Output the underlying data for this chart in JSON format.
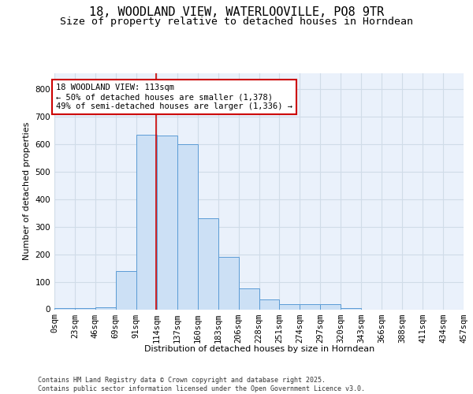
{
  "title_line1": "18, WOODLAND VIEW, WATERLOOVILLE, PO8 9TR",
  "title_line2": "Size of property relative to detached houses in Horndean",
  "xlabel": "Distribution of detached houses by size in Horndean",
  "ylabel": "Number of detached properties",
  "bin_labels": [
    "0sqm",
    "23sqm",
    "46sqm",
    "69sqm",
    "91sqm",
    "114sqm",
    "137sqm",
    "160sqm",
    "183sqm",
    "206sqm",
    "228sqm",
    "251sqm",
    "274sqm",
    "297sqm",
    "320sqm",
    "343sqm",
    "366sqm",
    "388sqm",
    "411sqm",
    "434sqm",
    "457sqm"
  ],
  "bin_starts": [
    0,
    23,
    46,
    69,
    92,
    115,
    138,
    161,
    184,
    207,
    230,
    253,
    276,
    299,
    322,
    345,
    368,
    391,
    414,
    437
  ],
  "bin_width": 23,
  "bar_heights": [
    5,
    5,
    8,
    140,
    635,
    632,
    600,
    330,
    190,
    75,
    35,
    20,
    20,
    20,
    5,
    0,
    0,
    0,
    0,
    0
  ],
  "bar_color": "#cce0f5",
  "bar_edge_color": "#5b9bd5",
  "property_line_x": 114,
  "property_line_color": "#cc0000",
  "annotation_text": "18 WOODLAND VIEW: 113sqm\n← 50% of detached houses are smaller (1,378)\n49% of semi-detached houses are larger (1,336) →",
  "annotation_box_color": "#cc0000",
  "ylim": [
    0,
    860
  ],
  "yticks": [
    0,
    100,
    200,
    300,
    400,
    500,
    600,
    700,
    800
  ],
  "xlim_min": 0,
  "xlim_max": 460,
  "background_color": "#eaf1fb",
  "grid_color": "#d0dce8",
  "footer_text": "Contains HM Land Registry data © Crown copyright and database right 2025.\nContains public sector information licensed under the Open Government Licence v3.0.",
  "title_fontsize": 11,
  "subtitle_fontsize": 9.5,
  "axis_label_fontsize": 8,
  "tick_fontsize": 7.5,
  "annotation_fontsize": 7.5
}
